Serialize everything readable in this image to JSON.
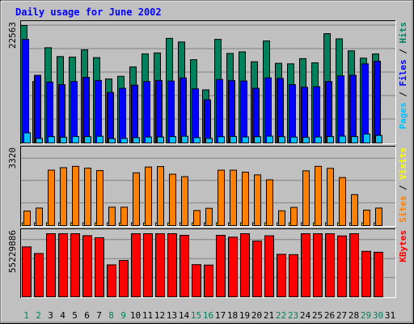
{
  "chart_data": {
    "type": "bar",
    "title": "Daily usage for June 2002",
    "days": [
      "1",
      "2",
      "3",
      "4",
      "5",
      "6",
      "7",
      "8",
      "9",
      "10",
      "11",
      "12",
      "13",
      "14",
      "15",
      "16",
      "17",
      "18",
      "19",
      "20",
      "21",
      "22",
      "23",
      "24",
      "25",
      "26",
      "27",
      "28",
      "29",
      "30",
      "31"
    ],
    "weekend_days": [
      "1",
      "2",
      "8",
      "9",
      "15",
      "16",
      "22",
      "23",
      "29",
      "30"
    ],
    "colors": {
      "background": "#c0c0c0",
      "title": "#0000ff",
      "hits": "#00805c",
      "files": "#0000ff",
      "pages": "#00c0ff",
      "visits": "#ffff00",
      "sites": "#ff8000",
      "kbytes": "#ff0000",
      "weekend_label": "#00805c",
      "weekday_label": "#000000"
    },
    "panels": [
      {
        "id": "hits-files-pages",
        "ymax_label": "22563",
        "ymax": 22563,
        "legend": [
          {
            "text": "Pages",
            "color": "#00c0ff"
          },
          {
            "text": " / ",
            "color": "#000000"
          },
          {
            "text": "Files",
            "color": "#0000ff"
          },
          {
            "text": " / ",
            "color": "#000000"
          },
          {
            "text": "Hits",
            "color": "#00805c"
          }
        ],
        "series": [
          {
            "name": "Hits",
            "color": "#00805c",
            "values": [
              22563,
              11800,
              18300,
              16600,
              16500,
              17900,
              16400,
              12300,
              12800,
              14600,
              17100,
              17300,
              20100,
              19400,
              16000,
              10200,
              19900,
              17200,
              17500,
              15600,
              19600,
              15300,
              15200,
              16200,
              15400,
              21000,
              20000,
              17700,
              16300,
              17100,
              0
            ]
          },
          {
            "name": "Files",
            "color": "#0000ff",
            "values": [
              19900,
              13000,
              11700,
              11200,
              11800,
              12600,
              12000,
              9700,
              10500,
              11100,
              11800,
              12000,
              11900,
              12500,
              10400,
              8300,
              12200,
              12000,
              11900,
              10500,
              12500,
              12400,
              11200,
              10700,
              10800,
              11800,
              12900,
              13000,
              15200,
              15700,
              0
            ]
          },
          {
            "name": "Pages",
            "color": "#00c0ff",
            "values": [
              1950,
              870,
              1220,
              1100,
              1250,
              1230,
              1290,
              830,
              870,
              1030,
              1140,
              1150,
              1230,
              1290,
              1030,
              880,
              1200,
              1260,
              1160,
              1210,
              1310,
              1210,
              1130,
              1070,
              1140,
              1230,
              1320,
              1230,
              1720,
              1450,
              0
            ]
          }
        ]
      },
      {
        "id": "visits-sites",
        "ymax_label": "3320",
        "ymax": 3320,
        "legend": [
          {
            "text": "Sites",
            "color": "#ff8000"
          },
          {
            "text": " / ",
            "color": "#000000"
          },
          {
            "text": "Visits",
            "color": "#ffff00"
          }
        ],
        "series": [
          {
            "name": "Visits",
            "color": "#ffff00",
            "values": [
              120,
              120,
              120,
              120,
              120,
              120,
              120,
              120,
              120,
              120,
              120,
              120,
              120,
              120,
              120,
              120,
              120,
              120,
              120,
              120,
              120,
              120,
              120,
              120,
              120,
              120,
              120,
              120,
              120,
              120,
              0
            ]
          },
          {
            "name": "Sites",
            "color": "#ff8000",
            "values": [
              650,
              780,
              2470,
              2580,
              2640,
              2560,
              2450,
              820,
              820,
              2350,
              2610,
              2630,
              2290,
              2180,
              670,
              770,
              2470,
              2470,
              2380,
              2260,
              2040,
              660,
              810,
              2440,
              2640,
              2550,
              2140,
              1380,
              690,
              780,
              0
            ]
          }
        ]
      },
      {
        "id": "kbytes",
        "ymax_label": "55229886",
        "ymax": 55229886,
        "legend": [
          {
            "text": "KBytes",
            "color": "#ff0000"
          }
        ],
        "series": [
          {
            "name": "KBytes",
            "color": "#ff0000",
            "values": [
              43700,
              37900,
              55200,
              55200,
              55200,
              53500,
              51700,
              28000,
              31800,
              55200,
              55200,
              55200,
              55200,
              53800,
              28200,
              27800,
              53800,
              52200,
              55200,
              48800,
              53400,
              37200,
              36900,
              55200,
              55200,
              55200,
              53300,
              55200,
              39800,
              39000,
              0
            ]
          }
        ]
      }
    ]
  }
}
